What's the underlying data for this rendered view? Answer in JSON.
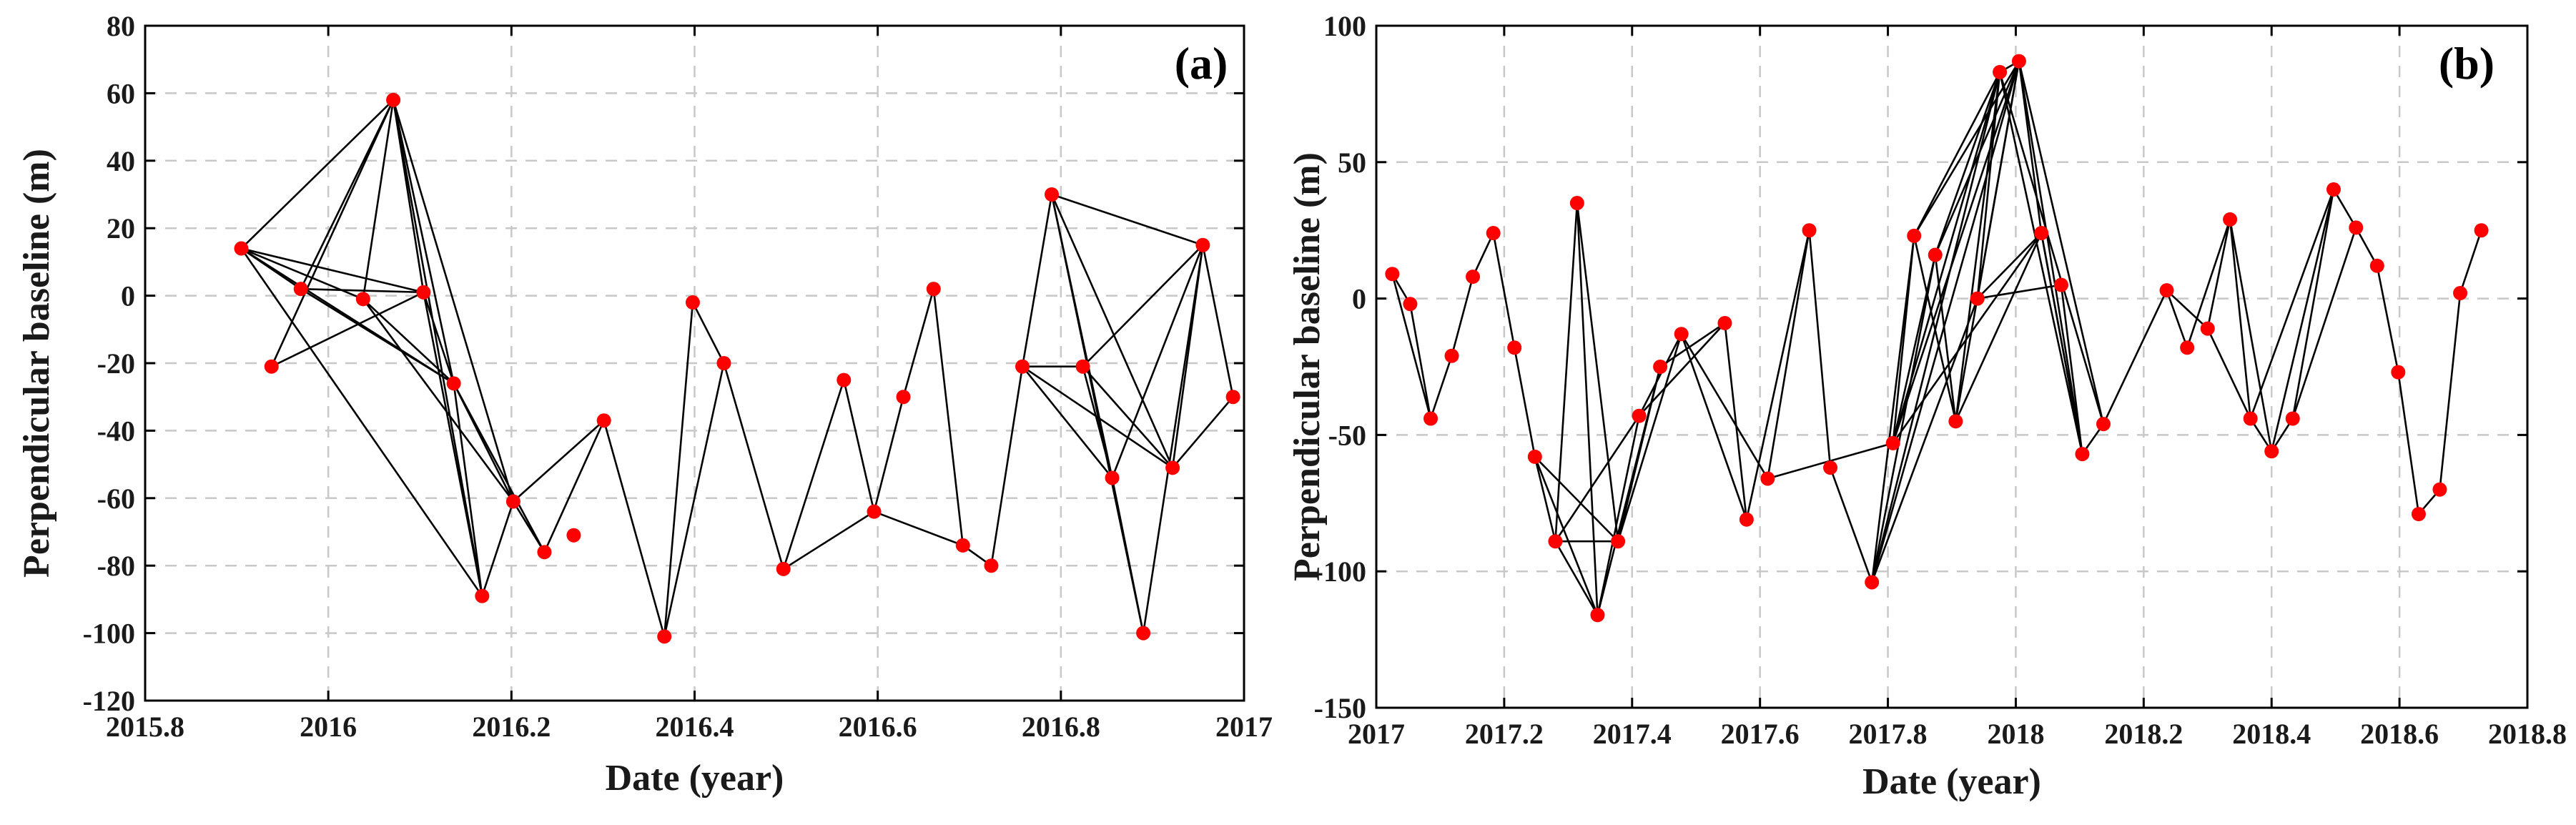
{
  "chart_data": [
    {
      "type": "scatter",
      "title": "",
      "panel_label": "(a)",
      "xlabel": "Date (year)",
      "ylabel": "Perpendicular baseline (m)",
      "xlim": [
        2015.8,
        2017.0
      ],
      "ylim": [
        -120,
        80
      ],
      "xticks": [
        2015.8,
        2016,
        2016.2,
        2016.4,
        2016.6,
        2016.8,
        2017
      ],
      "xtick_labels": [
        "2015.8",
        "2016",
        "2016.2",
        "2016.4",
        "2016.6",
        "2016.8",
        "2017"
      ],
      "yticks": [
        80,
        60,
        40,
        20,
        0,
        -20,
        -40,
        -60,
        -80,
        -100,
        -120
      ],
      "ytick_labels": [
        "80",
        "60",
        "40",
        "20",
        "0",
        "-20",
        "-40",
        "-60",
        "-80",
        "-100",
        "-120"
      ],
      "grid": true,
      "marker_color": "#ff0000",
      "line_color": "#000000",
      "points": [
        {
          "x": 2015.905,
          "y": 14
        },
        {
          "x": 2015.938,
          "y": -21
        },
        {
          "x": 2015.97,
          "y": 2
        },
        {
          "x": 2016.038,
          "y": -1
        },
        {
          "x": 2016.071,
          "y": 58
        },
        {
          "x": 2016.104,
          "y": 1
        },
        {
          "x": 2016.137,
          "y": -26
        },
        {
          "x": 2016.168,
          "y": -89
        },
        {
          "x": 2016.202,
          "y": -61
        },
        {
          "x": 2016.236,
          "y": -76
        },
        {
          "x": 2016.268,
          "y": -71
        },
        {
          "x": 2016.301,
          "y": -37
        },
        {
          "x": 2016.367,
          "y": -101
        },
        {
          "x": 2016.398,
          "y": -2
        },
        {
          "x": 2016.432,
          "y": -20
        },
        {
          "x": 2016.497,
          "y": -81
        },
        {
          "x": 2016.563,
          "y": -25
        },
        {
          "x": 2016.596,
          "y": -64
        },
        {
          "x": 2016.628,
          "y": -30
        },
        {
          "x": 2016.661,
          "y": 2
        },
        {
          "x": 2016.693,
          "y": -74
        },
        {
          "x": 2016.724,
          "y": -80
        },
        {
          "x": 2016.758,
          "y": -21
        },
        {
          "x": 2016.79,
          "y": 30
        },
        {
          "x": 2016.824,
          "y": -21
        },
        {
          "x": 2016.856,
          "y": -54
        },
        {
          "x": 2016.89,
          "y": -100
        },
        {
          "x": 2016.922,
          "y": -51
        },
        {
          "x": 2016.955,
          "y": 15
        },
        {
          "x": 2016.988,
          "y": -30
        }
      ],
      "edges": [
        [
          0,
          2
        ],
        [
          0,
          3
        ],
        [
          0,
          4
        ],
        [
          0,
          5
        ],
        [
          0,
          6
        ],
        [
          0,
          7
        ],
        [
          1,
          4
        ],
        [
          1,
          5
        ],
        [
          2,
          4
        ],
        [
          2,
          5
        ],
        [
          2,
          6
        ],
        [
          3,
          4
        ],
        [
          3,
          6
        ],
        [
          3,
          8
        ],
        [
          4,
          5
        ],
        [
          4,
          6
        ],
        [
          4,
          7
        ],
        [
          4,
          8
        ],
        [
          5,
          6
        ],
        [
          5,
          7
        ],
        [
          6,
          7
        ],
        [
          6,
          8
        ],
        [
          6,
          9
        ],
        [
          7,
          8
        ],
        [
          8,
          9
        ],
        [
          8,
          11
        ],
        [
          9,
          11
        ],
        [
          11,
          12
        ],
        [
          12,
          13
        ],
        [
          13,
          14
        ],
        [
          12,
          14
        ],
        [
          14,
          15
        ],
        [
          15,
          16
        ],
        [
          15,
          17
        ],
        [
          16,
          17
        ],
        [
          17,
          18
        ],
        [
          17,
          20
        ],
        [
          18,
          19
        ],
        [
          19,
          20
        ],
        [
          20,
          21
        ],
        [
          21,
          22
        ],
        [
          22,
          23
        ],
        [
          22,
          24
        ],
        [
          22,
          25
        ],
        [
          22,
          27
        ],
        [
          23,
          25
        ],
        [
          23,
          26
        ],
        [
          23,
          27
        ],
        [
          23,
          28
        ],
        [
          24,
          25
        ],
        [
          24,
          27
        ],
        [
          25,
          28
        ],
        [
          26,
          28
        ],
        [
          27,
          28
        ],
        [
          27,
          29
        ],
        [
          28,
          29
        ],
        [
          24,
          28
        ],
        [
          25,
          26
        ]
      ]
    },
    {
      "type": "scatter",
      "title": "",
      "panel_label": "(b)",
      "xlabel": "Date (year)",
      "ylabel": "Perpendicular baseline (m)",
      "xlim": [
        2017.0,
        2018.8
      ],
      "ylim": [
        -150,
        100
      ],
      "xticks": [
        2017,
        2017.2,
        2017.4,
        2017.6,
        2017.8,
        2018,
        2018.2,
        2018.4,
        2018.6,
        2018.8
      ],
      "xtick_labels": [
        "2017",
        "2017.2",
        "2017.4",
        "2017.6",
        "2017.8",
        "2018",
        "2018.2",
        "2018.4",
        "2018.6",
        "2018.8"
      ],
      "yticks": [
        100,
        50,
        0,
        -50,
        -100,
        -150
      ],
      "ytick_labels": [
        "100",
        "50",
        "0",
        "-50",
        "-100",
        "-150"
      ],
      "grid": true,
      "marker_color": "#ff0000",
      "line_color": "#000000",
      "points": [
        {
          "x": 2017.025,
          "y": 9
        },
        {
          "x": 2017.053,
          "y": -2
        },
        {
          "x": 2017.085,
          "y": -44
        },
        {
          "x": 2017.118,
          "y": -21
        },
        {
          "x": 2017.151,
          "y": 8
        },
        {
          "x": 2017.183,
          "y": 24
        },
        {
          "x": 2017.216,
          "y": -18
        },
        {
          "x": 2017.248,
          "y": -58
        },
        {
          "x": 2017.28,
          "y": -89
        },
        {
          "x": 2017.314,
          "y": 35
        },
        {
          "x": 2017.346,
          "y": -116
        },
        {
          "x": 2017.378,
          "y": -89
        },
        {
          "x": 2017.411,
          "y": -43
        },
        {
          "x": 2017.444,
          "y": -25
        },
        {
          "x": 2017.477,
          "y": -13
        },
        {
          "x": 2017.545,
          "y": -9
        },
        {
          "x": 2017.579,
          "y": -81
        },
        {
          "x": 2017.612,
          "y": -66
        },
        {
          "x": 2017.677,
          "y": 25
        },
        {
          "x": 2017.71,
          "y": -62
        },
        {
          "x": 2017.775,
          "y": -104
        },
        {
          "x": 2017.808,
          "y": -53
        },
        {
          "x": 2017.841,
          "y": 23
        },
        {
          "x": 2017.874,
          "y": 16
        },
        {
          "x": 2017.906,
          "y": -45
        },
        {
          "x": 2017.94,
          "y": 0
        },
        {
          "x": 2017.975,
          "y": 83
        },
        {
          "x": 2018.005,
          "y": 87
        },
        {
          "x": 2018.04,
          "y": 24
        },
        {
          "x": 2018.071,
          "y": 5
        },
        {
          "x": 2018.104,
          "y": -57
        },
        {
          "x": 2018.137,
          "y": -46
        },
        {
          "x": 2018.236,
          "y": 3
        },
        {
          "x": 2018.268,
          "y": -18
        },
        {
          "x": 2018.3,
          "y": -11
        },
        {
          "x": 2018.335,
          "y": 29
        },
        {
          "x": 2018.367,
          "y": -44
        },
        {
          "x": 2018.4,
          "y": -56
        },
        {
          "x": 2018.433,
          "y": -44
        },
        {
          "x": 2018.497,
          "y": 40
        },
        {
          "x": 2018.532,
          "y": 26
        },
        {
          "x": 2018.565,
          "y": 12
        },
        {
          "x": 2018.598,
          "y": -27
        },
        {
          "x": 2018.63,
          "y": -79
        },
        {
          "x": 2018.663,
          "y": -70
        },
        {
          "x": 2018.695,
          "y": 2
        },
        {
          "x": 2018.728,
          "y": 25
        }
      ],
      "edges": [
        [
          0,
          1
        ],
        [
          0,
          2
        ],
        [
          1,
          2
        ],
        [
          2,
          3
        ],
        [
          3,
          4
        ],
        [
          4,
          5
        ],
        [
          5,
          6
        ],
        [
          6,
          7
        ],
        [
          7,
          8
        ],
        [
          7,
          10
        ],
        [
          8,
          9
        ],
        [
          9,
          10
        ],
        [
          9,
          11
        ],
        [
          8,
          11
        ],
        [
          7,
          11
        ],
        [
          8,
          12
        ],
        [
          10,
          12
        ],
        [
          10,
          13
        ],
        [
          11,
          13
        ],
        [
          11,
          14
        ],
        [
          12,
          14
        ],
        [
          12,
          15
        ],
        [
          13,
          15
        ],
        [
          14,
          16
        ],
        [
          15,
          16
        ],
        [
          14,
          17
        ],
        [
          16,
          18
        ],
        [
          17,
          18
        ],
        [
          18,
          19
        ],
        [
          19,
          20
        ],
        [
          17,
          21
        ],
        [
          20,
          22
        ],
        [
          21,
          22
        ],
        [
          20,
          23
        ],
        [
          21,
          23
        ],
        [
          20,
          26
        ],
        [
          20,
          27
        ],
        [
          21,
          26
        ],
        [
          21,
          27
        ],
        [
          21,
          28
        ],
        [
          22,
          24
        ],
        [
          22,
          26
        ],
        [
          22,
          27
        ],
        [
          23,
          24
        ],
        [
          23,
          26
        ],
        [
          23,
          27
        ],
        [
          24,
          26
        ],
        [
          24,
          27
        ],
        [
          24,
          28
        ],
        [
          25,
          26
        ],
        [
          25,
          27
        ],
        [
          25,
          28
        ],
        [
          25,
          29
        ],
        [
          26,
          27
        ],
        [
          26,
          30
        ],
        [
          27,
          28
        ],
        [
          27,
          30
        ],
        [
          27,
          31
        ],
        [
          28,
          30
        ],
        [
          29,
          30
        ],
        [
          30,
          31
        ],
        [
          31,
          32
        ],
        [
          32,
          33
        ],
        [
          32,
          34
        ],
        [
          33,
          35
        ],
        [
          34,
          35
        ],
        [
          34,
          36
        ],
        [
          35,
          36
        ],
        [
          35,
          37
        ],
        [
          36,
          37
        ],
        [
          37,
          38
        ],
        [
          36,
          39
        ],
        [
          37,
          39
        ],
        [
          38,
          39
        ],
        [
          38,
          40
        ],
        [
          39,
          40
        ],
        [
          40,
          41
        ],
        [
          41,
          42
        ],
        [
          42,
          43
        ],
        [
          43,
          44
        ],
        [
          44,
          45
        ],
        [
          45,
          46
        ],
        [
          28,
          30
        ],
        [
          26,
          31
        ],
        [
          20,
          25
        ],
        [
          8,
          10
        ]
      ]
    }
  ]
}
